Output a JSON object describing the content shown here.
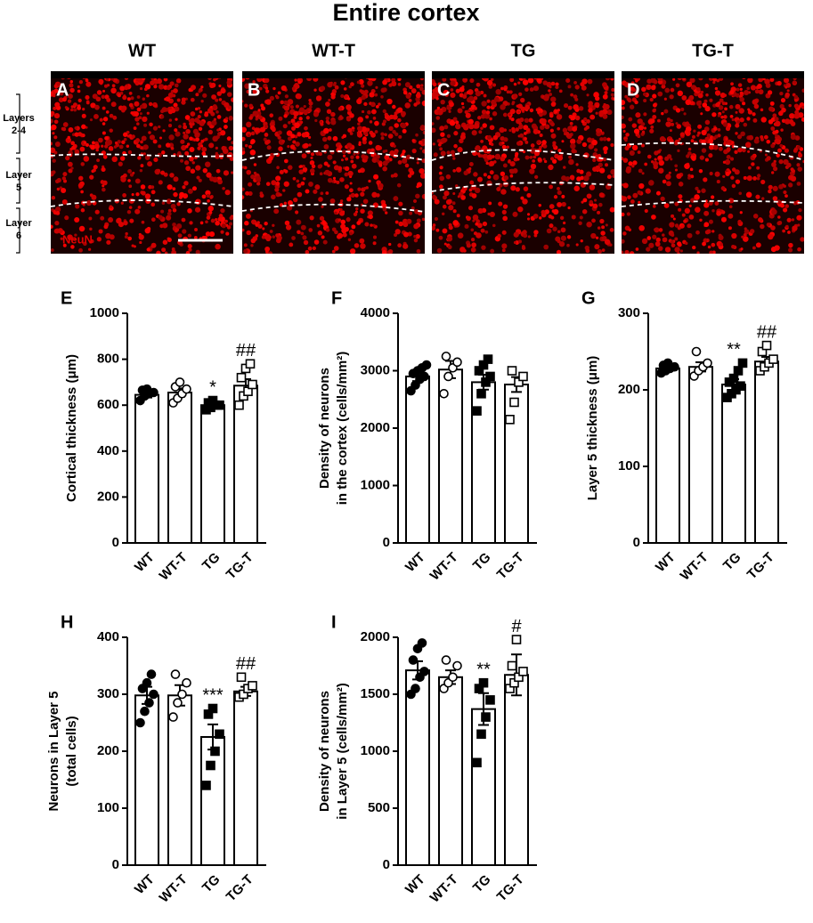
{
  "figure": {
    "title": "Entire cortex",
    "columns": [
      "WT",
      "WT-T",
      "TG",
      "TG-T"
    ],
    "panels": [
      "A",
      "B",
      "C",
      "D"
    ],
    "layers": [
      [
        "Layers",
        "2-4"
      ],
      [
        "Layer",
        "5"
      ],
      [
        "Layer",
        "6"
      ]
    ],
    "stain": "NeuN"
  },
  "chart_data": [
    {
      "type": "bar",
      "panel": "E",
      "ylabel": [
        "Cortical thickness (μm)"
      ],
      "categories": [
        "WT",
        "WT-T",
        "TG",
        "TG-T"
      ],
      "values": [
        645,
        655,
        600,
        685
      ],
      "errors": [
        12,
        18,
        8,
        28
      ],
      "points": [
        [
          620,
          640,
          650,
          655,
          665,
          670
        ],
        [
          610,
          630,
          650,
          670,
          680,
          700
        ],
        [
          580,
          590,
          600,
          600,
          610,
          620
        ],
        [
          600,
          640,
          660,
          690,
          720,
          760,
          780
        ]
      ],
      "annotations": [
        null,
        null,
        "*",
        "##"
      ],
      "markers": [
        "filled-circle",
        "open-circle",
        "filled-square",
        "open-square"
      ],
      "ylim": [
        0,
        1000
      ],
      "yticks": [
        0,
        200,
        400,
        600,
        800,
        1000
      ]
    },
    {
      "type": "bar",
      "panel": "F",
      "ylabel": [
        "Density of neurons",
        "in the cortex (cells/mm²)"
      ],
      "categories": [
        "WT",
        "WT-T",
        "TG",
        "TG-T"
      ],
      "values": [
        2900,
        3020,
        2800,
        2760
      ],
      "errors": [
        80,
        150,
        130,
        130
      ],
      "points": [
        [
          2650,
          2750,
          2850,
          2900,
          2950,
          3000,
          3050,
          3100
        ],
        [
          2600,
          2900,
          3050,
          3150,
          3250
        ],
        [
          2300,
          2600,
          2800,
          2900,
          3000,
          3100,
          3200
        ],
        [
          2150,
          2450,
          2800,
          2900,
          3000
        ]
      ],
      "annotations": [
        null,
        null,
        null,
        null
      ],
      "markers": [
        "filled-circle",
        "open-circle",
        "filled-square",
        "open-square"
      ],
      "ylim": [
        0,
        4000
      ],
      "yticks": [
        0,
        1000,
        2000,
        3000,
        4000
      ]
    },
    {
      "type": "bar",
      "panel": "G",
      "ylabel": [
        "Layer 5 thickness (μm)"
      ],
      "categories": [
        "WT",
        "WT-T",
        "TG",
        "TG-T"
      ],
      "values": [
        228,
        230,
        207,
        237
      ],
      "errors": [
        3,
        6,
        7,
        6
      ],
      "points": [
        [
          222,
          225,
          228,
          230,
          232,
          235
        ],
        [
          218,
          225,
          230,
          235,
          250
        ],
        [
          190,
          195,
          200,
          205,
          210,
          215,
          225,
          235
        ],
        [
          225,
          230,
          235,
          240,
          250,
          258
        ]
      ],
      "annotations": [
        null,
        null,
        "**",
        "##"
      ],
      "markers": [
        "filled-circle",
        "open-circle",
        "filled-square",
        "open-square"
      ],
      "ylim": [
        0,
        300
      ],
      "yticks": [
        0,
        100,
        200,
        300
      ]
    },
    {
      "type": "bar",
      "panel": "H",
      "ylabel": [
        "Neurons in Layer 5",
        "(total cells)"
      ],
      "categories": [
        "WT",
        "WT-T",
        "TG",
        "TG-T"
      ],
      "values": [
        298,
        298,
        225,
        305
      ],
      "errors": [
        15,
        18,
        22,
        8
      ],
      "points": [
        [
          250,
          270,
          285,
          300,
          310,
          320,
          335
        ],
        [
          260,
          285,
          300,
          320,
          335
        ],
        [
          140,
          175,
          200,
          230,
          265,
          275
        ],
        [
          295,
          300,
          310,
          315,
          330
        ]
      ],
      "annotations": [
        null,
        null,
        "***",
        "##"
      ],
      "markers": [
        "filled-circle",
        "open-circle",
        "filled-square",
        "open-square"
      ],
      "ylim": [
        0,
        400
      ],
      "yticks": [
        0,
        100,
        200,
        300,
        400
      ]
    },
    {
      "type": "bar",
      "panel": "I",
      "ylabel": [
        "Density of neurons",
        "in Layer 5 (cells/mm²)"
      ],
      "categories": [
        "WT",
        "WT-T",
        "TG",
        "TG-T"
      ],
      "values": [
        1710,
        1650,
        1370,
        1670
      ],
      "errors": [
        80,
        60,
        140,
        180
      ],
      "points": [
        [
          1500,
          1550,
          1650,
          1700,
          1800,
          1900,
          1950
        ],
        [
          1550,
          1600,
          1650,
          1750,
          1800
        ],
        [
          900,
          1150,
          1300,
          1450,
          1550,
          1600
        ],
        [
          1550,
          1600,
          1650,
          1700,
          1750,
          1980
        ]
      ],
      "annotations": [
        null,
        null,
        "**",
        "#"
      ],
      "markers": [
        "filled-circle",
        "open-circle",
        "filled-square",
        "open-square"
      ],
      "ylim": [
        0,
        2000
      ],
      "yticks": [
        0,
        500,
        1000,
        1500,
        2000
      ]
    }
  ]
}
